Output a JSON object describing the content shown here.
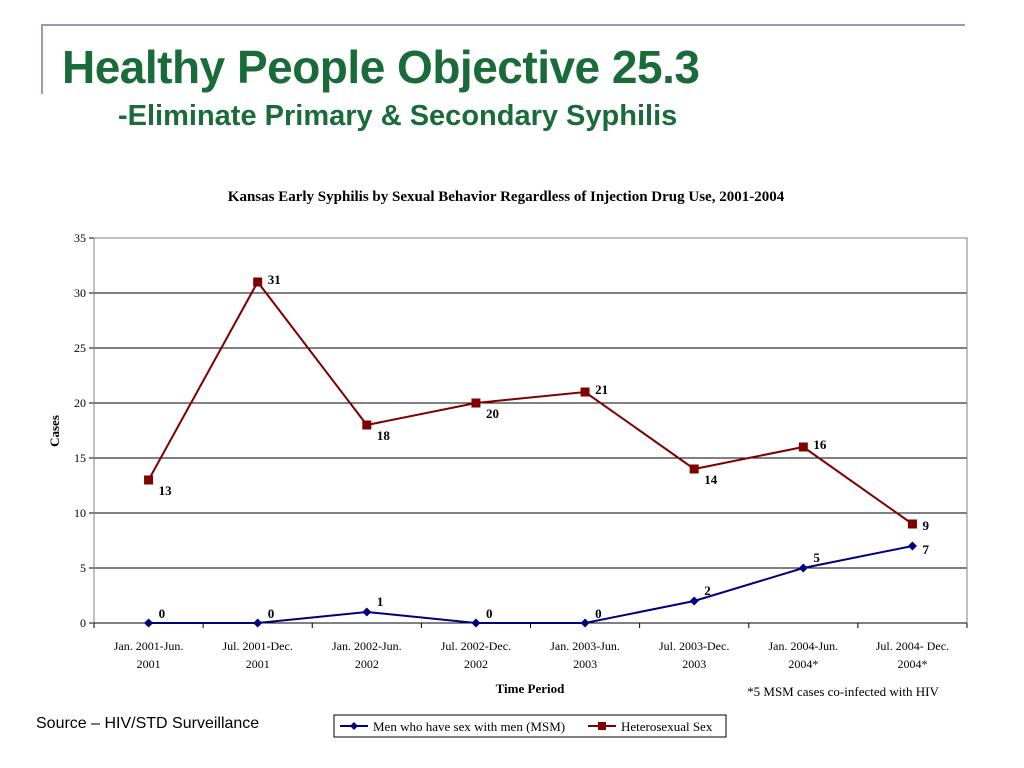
{
  "slide": {
    "title": "Healthy People Objective 25.3",
    "subtitle": "-Eliminate Primary & Secondary Syphilis",
    "source": "Source – HIV/STD Surveillance"
  },
  "chart_data": {
    "type": "line",
    "title": "Kansas Early Syphilis by Sexual Behavior Regardless of Injection Drug Use, 2001-2004",
    "xlabel": "Time Period",
    "ylabel": "Cases",
    "ylim": [
      0,
      35
    ],
    "yticks": [
      0,
      5,
      10,
      15,
      20,
      25,
      30,
      35
    ],
    "grid": true,
    "legend_position": "bottom",
    "categories": [
      [
        "Jan. 2001-Jun.",
        "2001"
      ],
      [
        "Jul. 2001-Dec.",
        "2001"
      ],
      [
        "Jan. 2002-Jun.",
        "2002"
      ],
      [
        "Jul. 2002-Dec.",
        "2002"
      ],
      [
        "Jan. 2003-Jun.",
        "2003"
      ],
      [
        "Jul. 2003-Dec.",
        "2003"
      ],
      [
        "Jan. 2004-Jun.",
        "2004*"
      ],
      [
        "Jul. 2004- Dec.",
        "2004*"
      ]
    ],
    "series": [
      {
        "name": "Men who have sex with men (MSM)",
        "values": [
          0,
          0,
          1,
          0,
          0,
          2,
          5,
          7
        ],
        "color": "#00007f",
        "marker": "diamond"
      },
      {
        "name": "Heterosexual Sex",
        "values": [
          13,
          31,
          18,
          20,
          21,
          14,
          16,
          9
        ],
        "color": "#7f0000",
        "marker": "square"
      }
    ],
    "annotation": "*5 MSM cases co-infected with HIV"
  }
}
